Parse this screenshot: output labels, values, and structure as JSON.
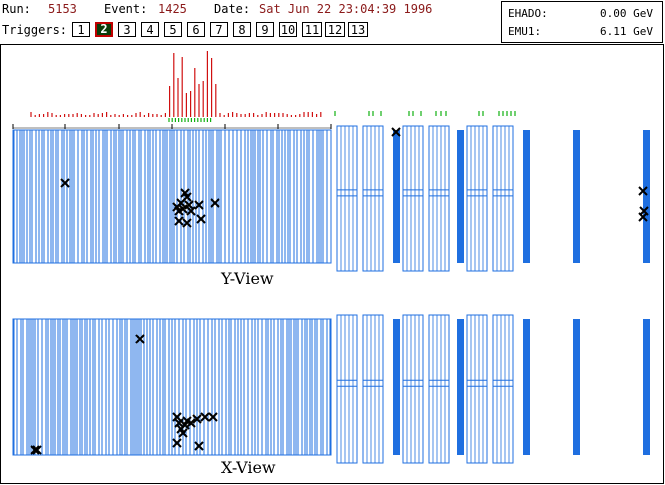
{
  "header": {
    "run_label": "Run:",
    "run_value": "5153",
    "event_label": "Event:",
    "event_value": "1425",
    "date_label": "Date:",
    "date_value": "Sat Jun 22 23:04:39 1996",
    "triggers_label": "Triggers:",
    "triggers": [
      "1",
      "2",
      "3",
      "4",
      "5",
      "6",
      "7",
      "8",
      "9",
      "10",
      "11",
      "12",
      "13"
    ],
    "selected_trigger": "2"
  },
  "energy": {
    "ehad_label": "EHADO:",
    "ehad_value": "0.00 GeV",
    "emu_label": "EMU1:",
    "emu_value": "6.11 GeV"
  },
  "views": {
    "y_title": "Y-View",
    "x_title": "X-View"
  },
  "colors": {
    "detector_blue": "#1f6fe0",
    "hit_red": "#d01010",
    "hit_green": "#10b010",
    "selected_trigger_bg": "#0a3d0a",
    "selected_trigger_border": "#c00000",
    "value_text": "#8b1a1a"
  }
}
